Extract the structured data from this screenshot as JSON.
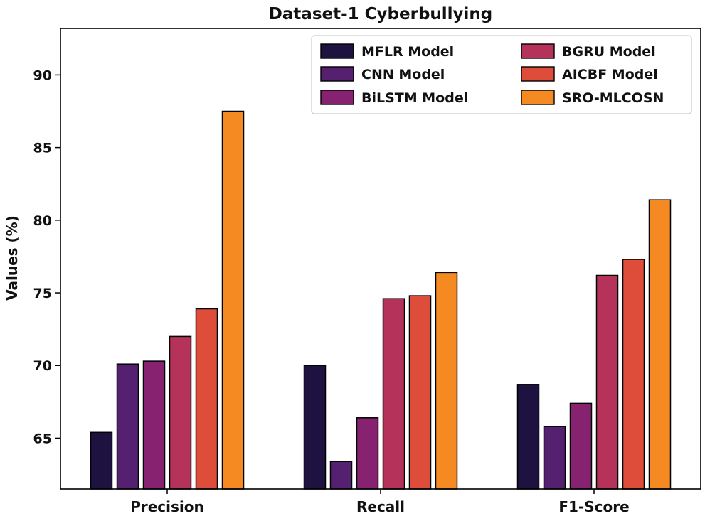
{
  "chart_data": {
    "type": "bar",
    "title": "Dataset-1 Cyberbullying",
    "xlabel": "",
    "ylabel": "Values (%)",
    "categories": [
      "Precision",
      "Recall",
      "F1-Score"
    ],
    "ylim": [
      61.5,
      93.2
    ],
    "yticks": [
      65,
      70,
      75,
      80,
      85,
      90
    ],
    "legend_position": "top-right",
    "series": [
      {
        "name": "MFLR Model",
        "color": "#1e1240",
        "values": [
          65.4,
          70.0,
          68.7
        ]
      },
      {
        "name": "CNN Model",
        "color": "#55206f",
        "values": [
          70.1,
          63.4,
          65.8
        ]
      },
      {
        "name": "BiLSTM Model",
        "color": "#86226f",
        "values": [
          70.3,
          66.4,
          67.4
        ]
      },
      {
        "name": "BGRU Model",
        "color": "#b5335a",
        "values": [
          72.0,
          74.6,
          76.2
        ]
      },
      {
        "name": "AICBF Model",
        "color": "#de4d3a",
        "values": [
          73.9,
          74.8,
          77.3
        ]
      },
      {
        "name": "SRO-MLCOSN",
        "color": "#f68a22",
        "values": [
          87.5,
          76.4,
          81.4
        ]
      }
    ]
  }
}
